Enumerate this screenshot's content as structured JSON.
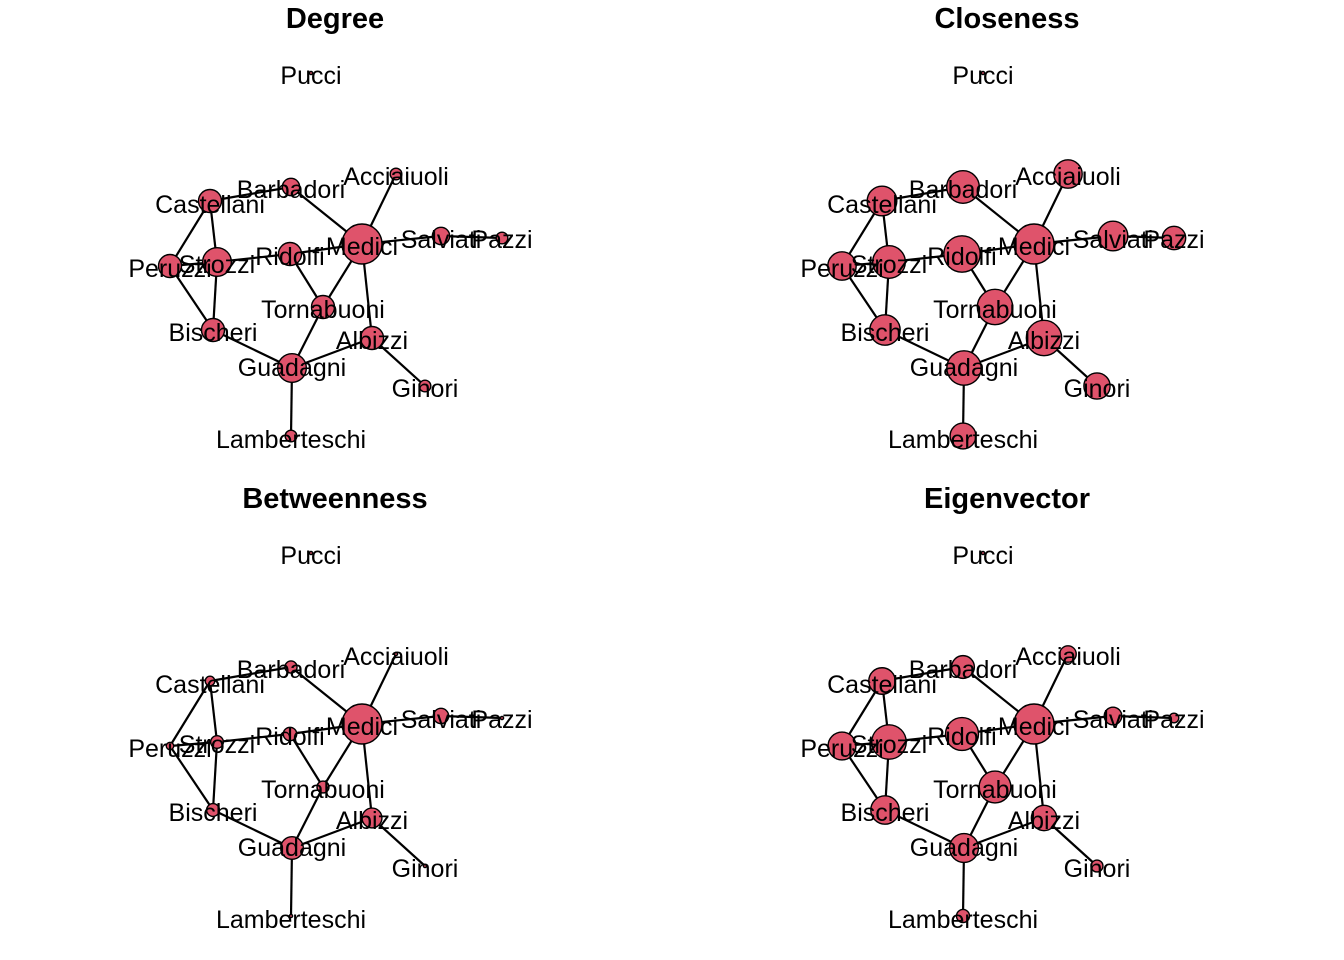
{
  "panels": [
    {
      "title": "Degree",
      "sizes": {
        "Pucci": 0,
        "Acciaiuoli": 1,
        "Albizzi": 3,
        "Barbadori": 2,
        "Bischeri": 3,
        "Castellani": 3,
        "Ginori": 1,
        "Guadagni": 4,
        "Lamberteschi": 1,
        "Medici": 6,
        "Pazzi": 1,
        "Peruzzi": 3,
        "Ridolfi": 3,
        "Salviati": 2,
        "Strozzi": 4,
        "Tornabuoni": 3
      }
    },
    {
      "title": "Closeness",
      "sizes": {
        "Pucci": 0,
        "Acciaiuoli": 0.368,
        "Albizzi": 0.483,
        "Barbadori": 0.438,
        "Bischeri": 0.4,
        "Castellani": 0.389,
        "Ginori": 0.333,
        "Guadagni": 0.467,
        "Lamberteschi": 0.326,
        "Medici": 0.56,
        "Pazzi": 0.286,
        "Peruzzi": 0.368,
        "Ridolfi": 0.5,
        "Salviati": 0.389,
        "Strozzi": 0.438,
        "Tornabuoni": 0.483
      }
    },
    {
      "title": "Betweenness",
      "sizes": {
        "Pucci": 0,
        "Acciaiuoli": 0,
        "Albizzi": 19.33,
        "Barbadori": 8.5,
        "Bischeri": 9.5,
        "Castellani": 5,
        "Ginori": 0,
        "Guadagni": 23.17,
        "Lamberteschi": 0,
        "Medici": 47.5,
        "Pazzi": 0,
        "Peruzzi": 2,
        "Ridolfi": 10.33,
        "Salviati": 13,
        "Strozzi": 9.33,
        "Tornabuoni": 8.33
      }
    },
    {
      "title": "Eigenvector",
      "sizes": {
        "Pucci": 0,
        "Acciaiuoli": 0.132,
        "Albizzi": 0.244,
        "Barbadori": 0.212,
        "Bischeri": 0.283,
        "Castellani": 0.259,
        "Ginori": 0.075,
        "Guadagni": 0.289,
        "Lamberteschi": 0.089,
        "Medici": 0.43,
        "Pazzi": 0.045,
        "Peruzzi": 0.276,
        "Ridolfi": 0.341,
        "Salviati": 0.146,
        "Strozzi": 0.36,
        "Tornabuoni": 0.326
      }
    }
  ],
  "nodes": [
    "Pucci",
    "Acciaiuoli",
    "Barbadori",
    "Castellani",
    "Peruzzi",
    "Strozzi",
    "Ridolfi",
    "Medici",
    "Salviati",
    "Pazzi",
    "Tornabuoni",
    "Bischeri",
    "Albizzi",
    "Guadagni",
    "Ginori",
    "Lamberteschi"
  ],
  "edges": [
    [
      "Acciaiuoli",
      "Medici"
    ],
    [
      "Castellani",
      "Peruzzi"
    ],
    [
      "Castellani",
      "Strozzi"
    ],
    [
      "Castellani",
      "Barbadori"
    ],
    [
      "Medici",
      "Barbadori"
    ],
    [
      "Medici",
      "Ridolfi"
    ],
    [
      "Medici",
      "Tornabuoni"
    ],
    [
      "Medici",
      "Albizzi"
    ],
    [
      "Medici",
      "Salviati"
    ],
    [
      "Salviati",
      "Pazzi"
    ],
    [
      "Peruzzi",
      "Strozzi"
    ],
    [
      "Peruzzi",
      "Bischeri"
    ],
    [
      "Strozzi",
      "Ridolfi"
    ],
    [
      "Strozzi",
      "Bischeri"
    ],
    [
      "Ridolfi",
      "Tornabuoni"
    ],
    [
      "Tornabuoni",
      "Guadagni"
    ],
    [
      "Albizzi",
      "Ginori"
    ],
    [
      "Albizzi",
      "Guadagni"
    ],
    [
      "Bischeri",
      "Guadagni"
    ],
    [
      "Guadagni",
      "Lamberteschi"
    ]
  ]
}
